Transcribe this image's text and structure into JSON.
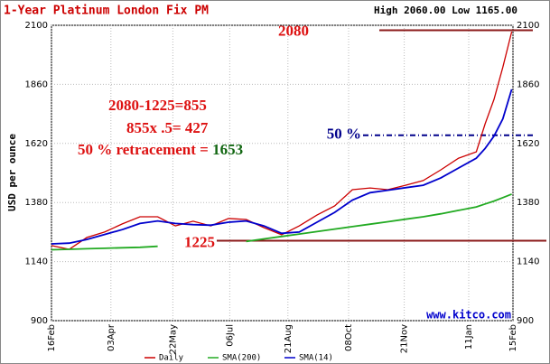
{
  "chart_data": {
    "type": "line",
    "title": "1-Year Platinum London Fix PM",
    "subtitle": "High 2060.00 Low 1165.00",
    "y_label": "USD per ounce",
    "source": "www.kitco.com",
    "x": [
      0,
      14,
      28,
      42,
      56,
      70,
      84,
      98,
      112,
      126,
      140,
      154,
      168,
      182,
      196,
      210,
      224,
      238,
      252,
      266,
      280,
      294,
      308,
      322,
      336,
      343,
      350,
      357,
      364
    ],
    "xlim": [
      0,
      365
    ],
    "xticks": [
      {
        "value": 0,
        "label": "16Feb"
      },
      {
        "value": 47,
        "label": "03Apr"
      },
      {
        "value": 96,
        "label": "22May"
      },
      {
        "value": 141,
        "label": "06Jul"
      },
      {
        "value": 187,
        "label": "21Aug"
      },
      {
        "value": 235,
        "label": "08Oct"
      },
      {
        "value": 279,
        "label": "21Nov"
      },
      {
        "value": 330,
        "label": "11Jan"
      },
      {
        "value": 365,
        "label": "15Feb"
      }
    ],
    "ylim": [
      900,
      2100
    ],
    "yticks": [
      900,
      1140,
      1380,
      1620,
      1860,
      2100
    ],
    "grid": true,
    "series": [
      {
        "name": "Daily",
        "color": "#cc0000",
        "values": [
          1205,
          1190,
          1238,
          1260,
          1293,
          1322,
          1322,
          1285,
          1304,
          1285,
          1315,
          1311,
          1278,
          1249,
          1285,
          1329,
          1366,
          1432,
          1439,
          1432,
          1450,
          1469,
          1513,
          1560,
          1586,
          1700,
          1799,
          1930,
          2074
        ]
      },
      {
        "name": "SMA(200)",
        "color": "#22aa22",
        "values": [
          1188,
          1190,
          1192,
          1194,
          1196,
          1198,
          1202,
          null,
          null,
          null,
          null,
          1222,
          1232,
          1242,
          1252,
          1262,
          1272,
          1282,
          1292,
          1302,
          1312,
          1322,
          1334,
          1348,
          1362,
          1374,
          1386,
          1400,
          1414
        ]
      },
      {
        "name": "SMA(14)",
        "color": "#0000cc",
        "values": [
          1212,
          1215,
          1230,
          1250,
          1270,
          1295,
          1305,
          1295,
          1290,
          1288,
          1300,
          1305,
          1285,
          1255,
          1260,
          1300,
          1340,
          1390,
          1420,
          1430,
          1440,
          1450,
          1480,
          1520,
          1560,
          1600,
          1650,
          1720,
          1840
        ]
      }
    ],
    "levels": [
      {
        "value": 2080,
        "label": "2080",
        "color": "#8b1a1a",
        "dash": false
      },
      {
        "value": 1653,
        "label": "50 %",
        "color": "#00008b",
        "dash": true
      },
      {
        "value": 1225,
        "label": "1225",
        "color": "#8b1a1a",
        "dash": false
      }
    ],
    "annotations": [
      "2080-1225=855",
      "855x .5= 427",
      "50 % retracement = ",
      "1653"
    ]
  }
}
